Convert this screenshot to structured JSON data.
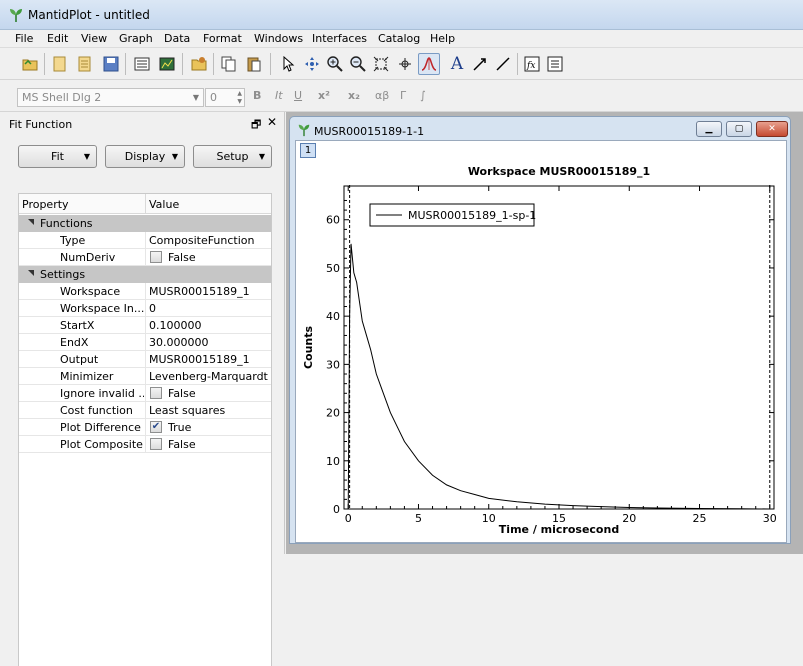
{
  "window": {
    "title": "MantidPlot - untitled"
  },
  "menu": [
    "File",
    "Edit",
    "View",
    "Graph",
    "Data",
    "Format",
    "Windows",
    "Interfaces",
    "Catalog",
    "Help"
  ],
  "format_bar": {
    "font": "MS Shell Dlg 2",
    "size": "0",
    "buttons": [
      "B",
      "It",
      "U",
      "x²",
      "x₂",
      "αβ",
      "Γ",
      "∫"
    ]
  },
  "fit_dock": {
    "title": "Fit Function",
    "buttons": {
      "fit": "Fit",
      "display": "Display",
      "setup": "Setup"
    },
    "table_headers": {
      "property": "Property",
      "value": "Value"
    },
    "groups": {
      "functions": "Functions",
      "settings": "Settings"
    },
    "rows": [
      {
        "name": "Type",
        "value": "CompositeFunction"
      },
      {
        "name": "NumDeriv",
        "value": "False",
        "checked": false
      },
      {
        "name": "Workspace",
        "value": "MUSR00015189_1"
      },
      {
        "name": "Workspace In...",
        "value": "0"
      },
      {
        "name": "StartX",
        "value": "0.100000"
      },
      {
        "name": "EndX",
        "value": "30.000000"
      },
      {
        "name": "Output",
        "value": "MUSR00015189_1"
      },
      {
        "name": "Minimizer",
        "value": "Levenberg-Marquardt"
      },
      {
        "name": "Ignore invalid ...",
        "value": "False",
        "checked": false
      },
      {
        "name": "Cost function",
        "value": "Least squares"
      },
      {
        "name": "Plot Difference",
        "value": "True",
        "checked": true
      },
      {
        "name": "Plot Composite...",
        "value": "False",
        "checked": false
      }
    ]
  },
  "plot_window": {
    "title": "MUSR00015189-1-1",
    "layer": "1"
  },
  "chart_data": {
    "type": "line",
    "title": "Workspace MUSR00015189_1",
    "xlabel": "Time / microsecond",
    "ylabel": "Counts",
    "xlim": [
      -0.3,
      30.3
    ],
    "ylim": [
      0,
      67
    ],
    "x_ticks": [
      0,
      5,
      10,
      15,
      20,
      25,
      30
    ],
    "y_ticks": [
      0,
      10,
      20,
      30,
      40,
      50,
      60
    ],
    "grid": false,
    "legend_placement": "top-left",
    "fit_range": [
      0.1,
      30.0
    ],
    "series": [
      {
        "name": "MUSR00015189_1-sp-1",
        "color": "#000000",
        "x": [
          0,
          0.1,
          0.2,
          0.3,
          0.4,
          0.6,
          0.8,
          1.0,
          1.3,
          1.6,
          2.0,
          2.5,
          3.0,
          3.5,
          4.0,
          5.0,
          6.0,
          7.0,
          8.0,
          9.0,
          10.0,
          12.0,
          14.0,
          16.0,
          18.0,
          20.0,
          22.0,
          25.0,
          28.0,
          30.0
        ],
        "values": [
          0,
          40,
          55,
          52,
          49,
          47,
          43,
          39,
          36,
          33,
          28,
          24,
          20,
          17,
          14,
          10,
          7,
          5,
          3.8,
          3,
          2.2,
          1.5,
          1.0,
          0.7,
          0.5,
          0.3,
          0.2,
          0.1,
          0.05,
          0
        ]
      }
    ]
  }
}
